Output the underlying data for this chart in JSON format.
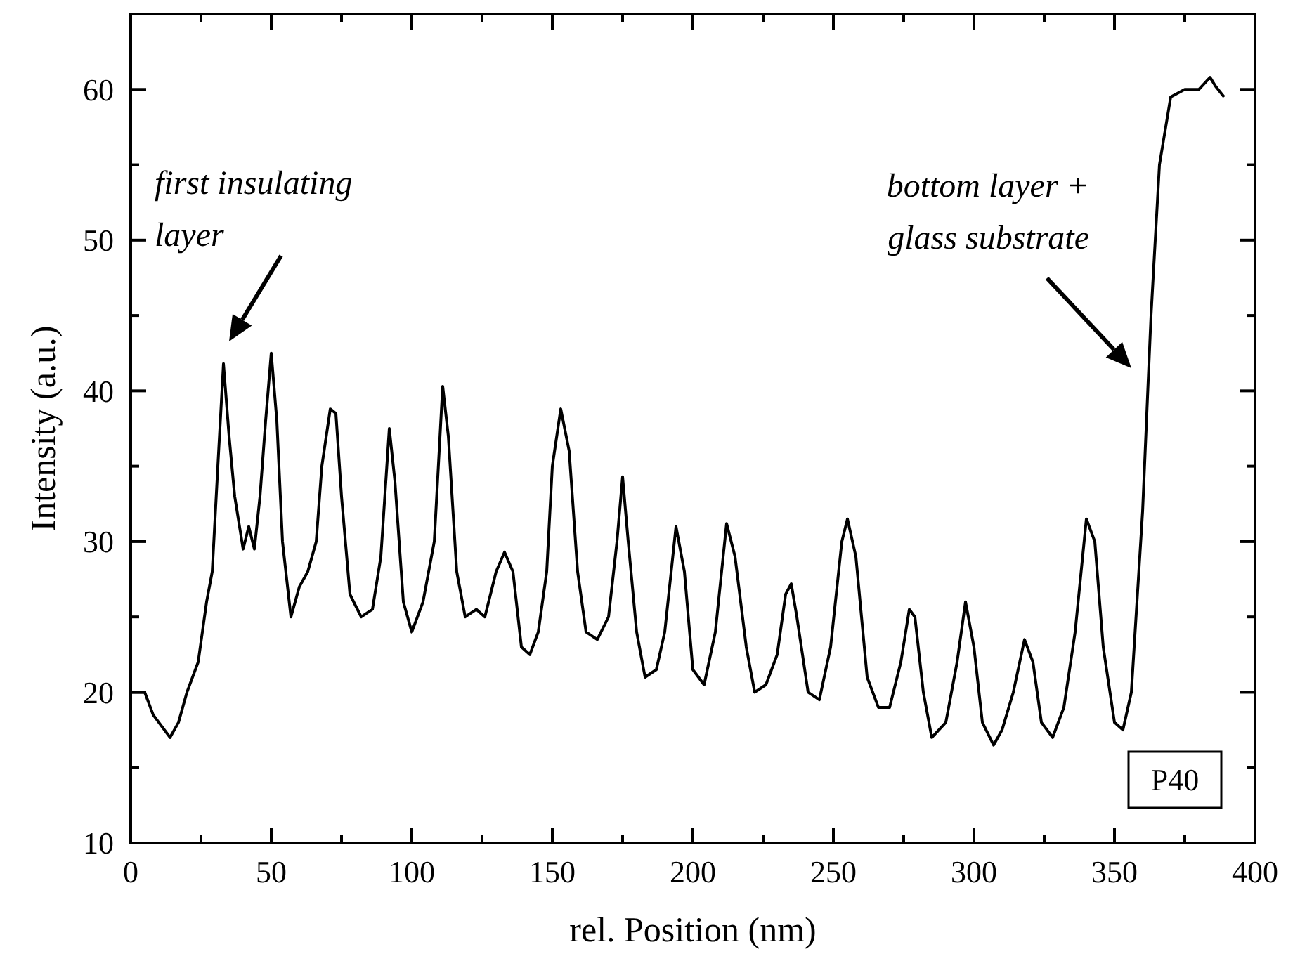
{
  "chart_data": {
    "type": "line",
    "xlabel": "rel. Position (nm)",
    "ylabel": "Intensity (a.u.)",
    "xlim": [
      0,
      400
    ],
    "ylim": [
      10,
      65
    ],
    "xticks": [
      0,
      {
        "value": 25,
        "label": null
      },
      50,
      {
        "value": 75,
        "label": null
      },
      100,
      {
        "value": 125,
        "label": null
      },
      150,
      {
        "value": 175,
        "label": null
      },
      200,
      {
        "value": 225,
        "label": null
      },
      250,
      {
        "value": 275,
        "label": null
      },
      300,
      {
        "value": 325,
        "label": null
      },
      350,
      {
        "value": 375,
        "label": null
      },
      400
    ],
    "yticks": [
      10,
      {
        "value": 15,
        "label": null
      },
      20,
      {
        "value": 25,
        "label": null
      },
      30,
      {
        "value": 35,
        "label": null
      },
      40,
      {
        "value": 45,
        "label": null
      },
      50,
      {
        "value": 55,
        "label": null
      },
      60,
      {
        "value": 65,
        "label": null
      }
    ],
    "grid": false,
    "marker": "none",
    "line_style": "solid",
    "series": [
      {
        "color": "#000000",
        "x": [
          0,
          5,
          8,
          14,
          17,
          20,
          24,
          27,
          29,
          31,
          33,
          35,
          37,
          40,
          42,
          44,
          46,
          48,
          50,
          52,
          54,
          57,
          60,
          63,
          66,
          68,
          71,
          73,
          75,
          78,
          82,
          86,
          89,
          92,
          94,
          97,
          100,
          104,
          108,
          111,
          113,
          116,
          119,
          123,
          126,
          130,
          133,
          136,
          139,
          142,
          145,
          148,
          150,
          153,
          156,
          159,
          162,
          166,
          170,
          173,
          175,
          177,
          180,
          183,
          187,
          190,
          194,
          197,
          200,
          204,
          208,
          212,
          215,
          219,
          222,
          226,
          230,
          233,
          235,
          237,
          241,
          245,
          249,
          253,
          255,
          258,
          262,
          266,
          270,
          274,
          277,
          279,
          282,
          285,
          290,
          294,
          297,
          300,
          303,
          307,
          310,
          314,
          318,
          321,
          324,
          328,
          332,
          336,
          340,
          343,
          346,
          350,
          353,
          356,
          360,
          363,
          366,
          370,
          375,
          380,
          384,
          386,
          389
        ],
        "values": [
          20,
          20,
          18.5,
          17,
          18,
          20,
          22,
          26,
          28,
          35,
          41.8,
          37,
          33,
          29.5,
          31,
          29.5,
          33,
          38,
          42.5,
          38,
          30,
          25,
          27,
          28,
          30,
          35,
          38.8,
          38.5,
          33,
          26.5,
          25,
          25.5,
          29,
          37.5,
          34,
          26,
          24,
          26,
          30,
          40.3,
          37,
          28,
          25,
          25.5,
          25,
          28,
          29.3,
          28,
          23,
          22.5,
          24,
          28,
          35,
          38.8,
          36,
          28,
          24,
          23.5,
          25,
          30,
          34.3,
          30,
          24,
          21,
          21.5,
          24,
          31,
          28,
          21.5,
          20.5,
          24,
          31.2,
          29,
          23,
          20,
          20.5,
          22.5,
          26.5,
          27.2,
          25,
          20,
          19.5,
          23,
          30,
          31.5,
          29,
          21,
          19,
          19,
          22,
          25.5,
          25,
          20,
          17,
          18,
          22,
          26,
          23,
          18,
          16.5,
          17.5,
          20,
          23.5,
          22,
          18,
          17,
          19,
          24,
          31.5,
          30,
          23,
          18,
          17.5,
          20,
          32,
          45,
          55,
          59.5,
          60,
          60,
          60.8,
          60.2,
          59.5
        ]
      }
    ],
    "annotations": [
      "first insulating\nlayer",
      "bottom layer +\nglass substrate",
      "P40"
    ]
  }
}
